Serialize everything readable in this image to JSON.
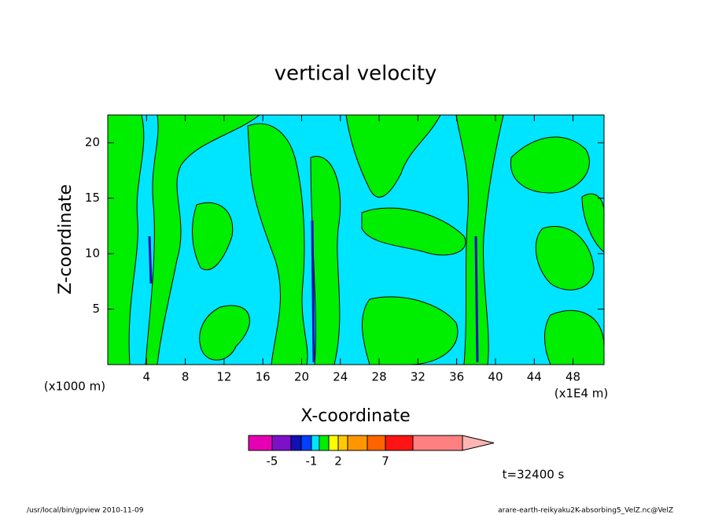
{
  "chart_data": {
    "type": "contour",
    "title": "vertical velocity",
    "x_label": "X-coordinate",
    "y_label": "Z-coordinate",
    "x_unit_label": "(x1E4 m)",
    "y_unit_label": "(x1000 m)",
    "xlim": [
      0,
      51.2
    ],
    "ylim": [
      0,
      22.5
    ],
    "xticks": [
      4,
      8,
      12,
      16,
      20,
      24,
      28,
      32,
      36,
      40,
      44,
      48
    ],
    "yticks": [
      5,
      10,
      15,
      20
    ],
    "colorbar": {
      "colors": [
        "#e600b4",
        "#7d10c8",
        "#1010b4",
        "#0040ff",
        "#00e5ff",
        "#00ee00",
        "#ffff00",
        "#ffc800",
        "#ff9600",
        "#ff6400",
        "#ff1414",
        "#ff8080",
        "#ffb4b4"
      ],
      "ticks": [
        -5,
        -1,
        2,
        7
      ]
    },
    "time_label": "t=32400 s",
    "footer_left": "/usr/local/bin/gpview  2010-11-09",
    "footer_right": "arare-earth-reikyaku2K-absorbing5_VelZ.nc@VelZ"
  }
}
